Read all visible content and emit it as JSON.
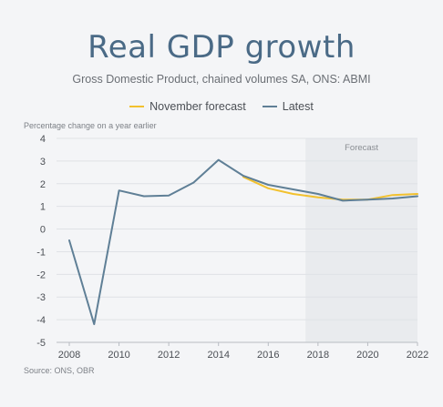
{
  "chart_data": {
    "type": "line",
    "title": "Real GDP growth",
    "subtitle": "Gross Domestic Product, chained volumes SA, ONS: ABMI",
    "ylabel": "Percentage change on a year earlier",
    "xlabel": "",
    "source": "Source: ONS, OBR",
    "xlim": [
      2008,
      2022
    ],
    "ylim": [
      -5,
      4
    ],
    "x_ticks": [
      2008,
      2010,
      2012,
      2014,
      2016,
      2018,
      2020,
      2022
    ],
    "y_ticks": [
      -5,
      -4,
      -3,
      -2,
      -1,
      0,
      1,
      2,
      3,
      4
    ],
    "grid": "horizontal",
    "legend_position": "top-center",
    "forecast_region": {
      "label": "Forecast",
      "from": 2017.5,
      "to": 2022.5,
      "color": "#e9ebee"
    },
    "series": [
      {
        "name": "November forecast",
        "color": "#f2c12e",
        "x": [
          2015,
          2016,
          2017,
          2018,
          2019,
          2020,
          2021,
          2022
        ],
        "y": [
          2.3,
          1.8,
          1.55,
          1.4,
          1.3,
          1.3,
          1.5,
          1.55
        ]
      },
      {
        "name": "Latest",
        "color": "#5f7f96",
        "x": [
          2008,
          2009,
          2010,
          2011,
          2012,
          2013,
          2014,
          2015,
          2016,
          2017,
          2018,
          2019,
          2020,
          2021,
          2022
        ],
        "y": [
          -0.5,
          -4.2,
          1.7,
          1.45,
          1.48,
          2.05,
          3.05,
          2.35,
          1.95,
          1.75,
          1.55,
          1.25,
          1.3,
          1.35,
          1.45
        ]
      }
    ]
  }
}
